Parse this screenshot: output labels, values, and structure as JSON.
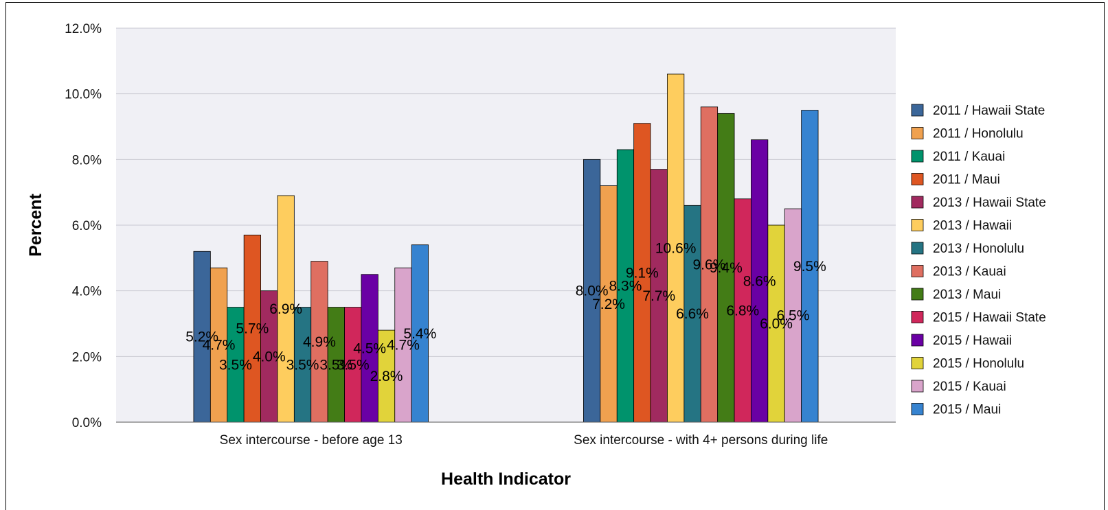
{
  "chart_data": {
    "type": "bar",
    "xlabel": "Health Indicator",
    "ylabel": "Percent",
    "ylim": [
      0,
      12
    ],
    "y_ticks": [
      "0.0%",
      "2.0%",
      "4.0%",
      "6.0%",
      "8.0%",
      "10.0%",
      "12.0%"
    ],
    "y_tick_values": [
      0,
      2,
      4,
      6,
      8,
      10,
      12
    ],
    "grid": true,
    "legend_position": "right",
    "categories": [
      "Sex intercourse - before age 13",
      "Sex intercourse - with 4+ persons during life"
    ],
    "series": [
      {
        "name": "2011 / Hawaii State",
        "color": "#3b6699",
        "values": [
          5.2,
          8.0
        ],
        "labels": [
          "5.2%",
          "8.0%"
        ]
      },
      {
        "name": "2011 / Honolulu",
        "color": "#f0a14f",
        "values": [
          4.7,
          7.2
        ],
        "labels": [
          "4.7%",
          "7.2%"
        ]
      },
      {
        "name": "2011 / Kauai",
        "color": "#00936c",
        "values": [
          3.5,
          8.3
        ],
        "labels": [
          "3.5%",
          "8.3%"
        ]
      },
      {
        "name": "2011 / Maui",
        "color": "#de5622",
        "values": [
          5.7,
          9.1
        ],
        "labels": [
          "5.7%",
          "9.1%"
        ]
      },
      {
        "name": "2013 / Hawaii State",
        "color": "#a12a5f",
        "values": [
          4.0,
          7.7
        ],
        "labels": [
          "4.0%",
          "7.7%"
        ]
      },
      {
        "name": "2013 / Hawaii",
        "color": "#fecd5e",
        "values": [
          6.9,
          10.6
        ],
        "labels": [
          "6.9%",
          "10.6%"
        ]
      },
      {
        "name": "2013 / Honolulu",
        "color": "#257483",
        "values": [
          3.5,
          6.6
        ],
        "labels": [
          "3.5%",
          "6.6%"
        ]
      },
      {
        "name": "2013 / Kauai",
        "color": "#df6f61",
        "values": [
          4.9,
          9.6
        ],
        "labels": [
          "4.9%",
          "9.6%"
        ]
      },
      {
        "name": "2013 / Maui",
        "color": "#437c16",
        "values": [
          3.5,
          9.4
        ],
        "labels": [
          "3.5%",
          "9.4%"
        ]
      },
      {
        "name": "2015 / Hawaii State",
        "color": "#d0275b",
        "values": [
          3.5,
          6.8
        ],
        "labels": [
          "3.5%",
          "6.8%"
        ]
      },
      {
        "name": "2015 / Hawaii",
        "color": "#6a00a4",
        "values": [
          4.5,
          8.6
        ],
        "labels": [
          "4.5%",
          "8.6%"
        ]
      },
      {
        "name": "2015 / Honolulu",
        "color": "#e1d33a",
        "values": [
          2.8,
          6.0
        ],
        "labels": [
          "2.8%",
          "6.0%"
        ]
      },
      {
        "name": "2015 / Kauai",
        "color": "#d9a4cb",
        "values": [
          4.7,
          6.5
        ],
        "labels": [
          "4.7%",
          "6.5%"
        ]
      },
      {
        "name": "2015 / Maui",
        "color": "#3683d0",
        "values": [
          5.4,
          9.5
        ],
        "labels": [
          "5.4%",
          "9.5%"
        ]
      }
    ]
  }
}
